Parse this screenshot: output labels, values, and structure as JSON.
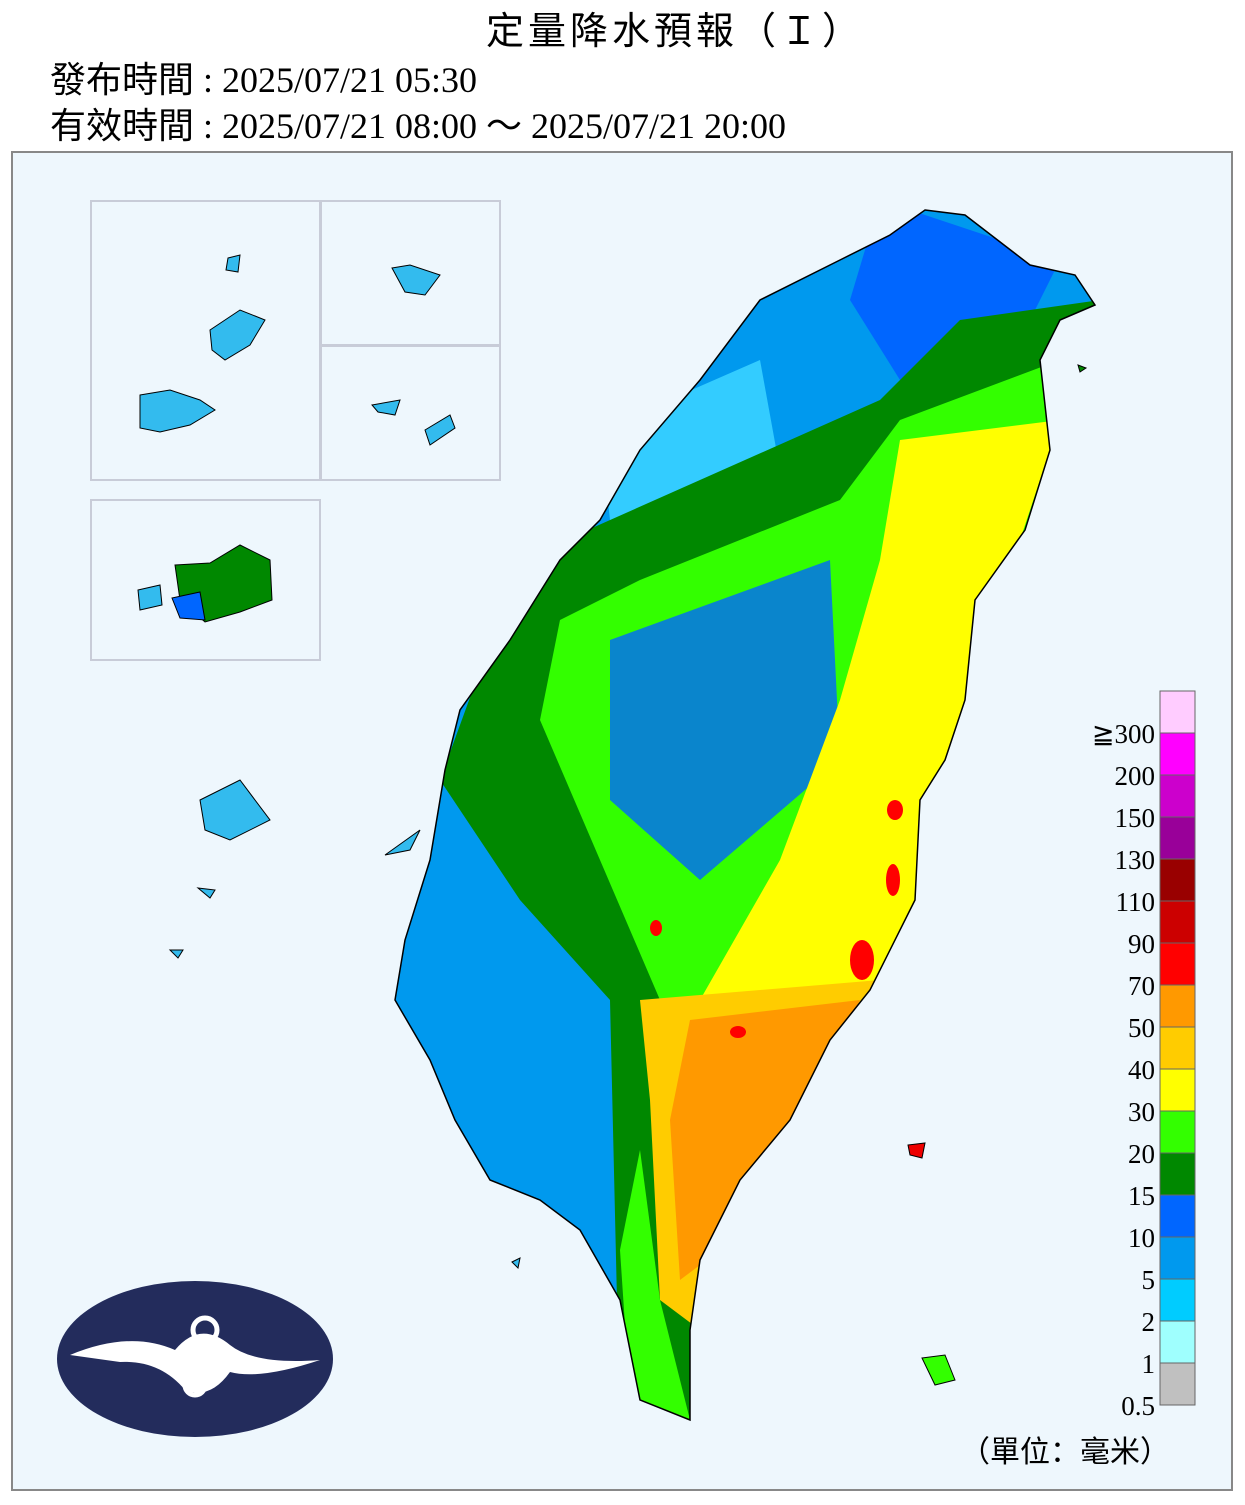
{
  "header": {
    "title": "定量降水預報（Ｉ）",
    "issued": "發布時間 : 2025/07/21 05:30",
    "valid": "有效時間 : 2025/07/21 08:00 ～ 2025/07/21 20:00"
  },
  "legend": {
    "labels": [
      "0.5",
      "1",
      "2",
      "5",
      "10",
      "15",
      "20",
      "30",
      "40",
      "50",
      "70",
      "90",
      "110",
      "130",
      "150",
      "200",
      "≧300"
    ],
    "colors": [
      "#c0c0c0",
      "#9ffffe",
      "#00ccff",
      "#0099ee",
      "#0066ff",
      "#008800",
      "#33ff00",
      "#ffff00",
      "#ffcc00",
      "#ff9900",
      "#ff0000",
      "#cc0000",
      "#990000",
      "#990099",
      "#cc00cc",
      "#ff00ff",
      "#ffccff"
    ],
    "unit": "（單位：毫米）"
  }
}
